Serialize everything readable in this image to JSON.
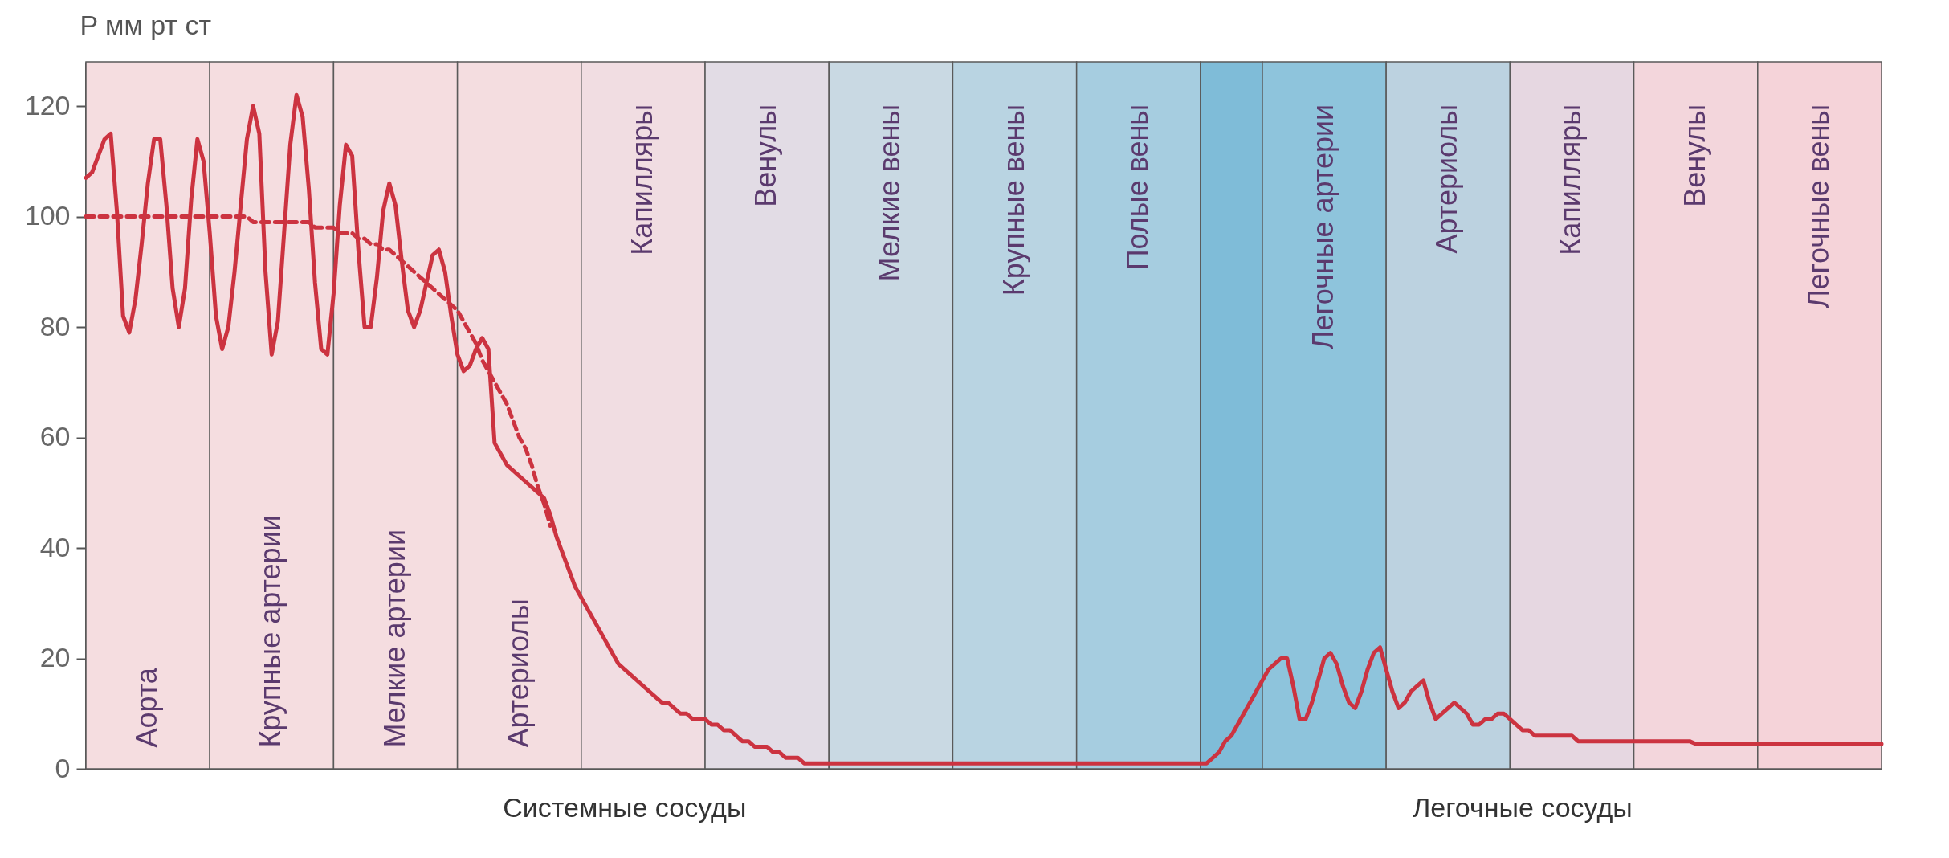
{
  "chart_data": {
    "type": "line",
    "ylabel": "P мм рт ст",
    "ylim": [
      0,
      128
    ],
    "yticks": [
      0,
      20,
      40,
      60,
      80,
      100,
      120
    ],
    "tick_labels": "y",
    "marker": "none",
    "categories": [
      null,
      null,
      null,
      null,
      null,
      null,
      null,
      null,
      null,
      null,
      null,
      null,
      null,
      null,
      null,
      null,
      null,
      null,
      null,
      null,
      null,
      null,
      null,
      null,
      null,
      null,
      null,
      null,
      null,
      null,
      null,
      null,
      null,
      null,
      null,
      null,
      null,
      null,
      null,
      null,
      null,
      null,
      null,
      null,
      null,
      null,
      null,
      null,
      null,
      null,
      null,
      null,
      null,
      null,
      null,
      null,
      null,
      null,
      null,
      null,
      null,
      null,
      null,
      null,
      null,
      null,
      null,
      null,
      null,
      null,
      null,
      null,
      null,
      null,
      null,
      null,
      null,
      null,
      null,
      null,
      null,
      null,
      null,
      null,
      null,
      null,
      null,
      null,
      null,
      null,
      null,
      null,
      null,
      null,
      null,
      null,
      null,
      null,
      null,
      null,
      null,
      null,
      null,
      null,
      null,
      null,
      null,
      null,
      null,
      null,
      null,
      null,
      null,
      null,
      null,
      null,
      null,
      null,
      null,
      null,
      null,
      null,
      null,
      null,
      null,
      null,
      null,
      null,
      null,
      null,
      null,
      null,
      null,
      null,
      null,
      null,
      null,
      null,
      null,
      null,
      null,
      null,
      null,
      null,
      null,
      null,
      null,
      null,
      null,
      null,
      null,
      null,
      null,
      null,
      null,
      null,
      null,
      null,
      null,
      null,
      null,
      null,
      null,
      null,
      null,
      null,
      null,
      null,
      null,
      null,
      null,
      null,
      null,
      null,
      null,
      null,
      null,
      null,
      null,
      null,
      null,
      null,
      null,
      null,
      null,
      null,
      null,
      null,
      null,
      null,
      null,
      null,
      null,
      null,
      null,
      null,
      null,
      null,
      null,
      null,
      null,
      null,
      null,
      null,
      null,
      null,
      null,
      null,
      null,
      null,
      null,
      null,
      null,
      null,
      null,
      null,
      null,
      null,
      null,
      null,
      null,
      null,
      null,
      null,
      null,
      null,
      null,
      null,
      null,
      null,
      null,
      null,
      null,
      null,
      null,
      null,
      null,
      null,
      null,
      null,
      null,
      null,
      null,
      null,
      null,
      null,
      null,
      null,
      null,
      null,
      null,
      null,
      null,
      null,
      null,
      null,
      null,
      null,
      null,
      null,
      null,
      null,
      null,
      null,
      null,
      null,
      null,
      null,
      null,
      null,
      null,
      null,
      null,
      null,
      null,
      null,
      null,
      null,
      null,
      null,
      null,
      null,
      null,
      null,
      null,
      null,
      null,
      null,
      null,
      null,
      null
    ],
    "annotations": [
      "Аорта",
      "Крупные артерии",
      "Мелкие артерии",
      "Артериолы",
      "Капилляры",
      "Венулы",
      "Мелкие вены",
      "Крупные вены",
      "Полые вены",
      "Легочные артерии",
      "Артериолы",
      "Капилляры",
      "Венулы",
      "Легочные вены",
      "Системные сосуды",
      "Легочные сосуды"
    ],
    "series": [
      {
        "color": "#cc3340",
        "line_style": "solid",
        "values": [
          107,
          108,
          111,
          114,
          115,
          101,
          82,
          79,
          85,
          95,
          106,
          114,
          114,
          102,
          87,
          80,
          87,
          103,
          114,
          110,
          97,
          82,
          76,
          80,
          90,
          102,
          114,
          120,
          115,
          90,
          75,
          81,
          97,
          113,
          122,
          118,
          105,
          88,
          76,
          75,
          86,
          102,
          113,
          111,
          94,
          80,
          80,
          89,
          101,
          106,
          102,
          92,
          83,
          80,
          83,
          88,
          93,
          94,
          90,
          82,
          75,
          72,
          73,
          76,
          78,
          76,
          59,
          57,
          55,
          54,
          53,
          52,
          51,
          50,
          49,
          46,
          42,
          39,
          36,
          33,
          31,
          29,
          27,
          25,
          23,
          21,
          19,
          18,
          17,
          16,
          15,
          14,
          13,
          12,
          12,
          11,
          10,
          10,
          9,
          9,
          9,
          8,
          8,
          7,
          7,
          6,
          5,
          5,
          4,
          4,
          4,
          3,
          3,
          2,
          2,
          2,
          1,
          1,
          1,
          1,
          1,
          1,
          1,
          1,
          1,
          1,
          1,
          1,
          1,
          1,
          1,
          1,
          1,
          1,
          1,
          1,
          1,
          1,
          1,
          1,
          1,
          1,
          1,
          1,
          1,
          1,
          1,
          1,
          1,
          1,
          1,
          1,
          1,
          1,
          1,
          1,
          1,
          1,
          1,
          1,
          1,
          1,
          1,
          1,
          1,
          1,
          1,
          1,
          1,
          1,
          1,
          1,
          1,
          1,
          1,
          1,
          1,
          1,
          1,
          1,
          1,
          1,
          2,
          3,
          5,
          6,
          8,
          10,
          12,
          14,
          16,
          18,
          19,
          20,
          20,
          15,
          9,
          9,
          12,
          16,
          20,
          21,
          19,
          15,
          12,
          11,
          14,
          18,
          21,
          22,
          18,
          14,
          11,
          12,
          14,
          15,
          16,
          12,
          9,
          10,
          11,
          12,
          11,
          10,
          8,
          8,
          9,
          9,
          10,
          10,
          9,
          8,
          7,
          7,
          6,
          6,
          6,
          6,
          6,
          6,
          6,
          5,
          5,
          5,
          5,
          5,
          5,
          5,
          5,
          5,
          5,
          5,
          5,
          5,
          5,
          5,
          5,
          5,
          5,
          5,
          4.5,
          4.5,
          4.5,
          4.5,
          4.5,
          4.5,
          4.5,
          4.5,
          4.5,
          4.5,
          4.5,
          4.5,
          4.5,
          4.5,
          4.5,
          4.5,
          4.5,
          4.5,
          4.5,
          4.5,
          4.5,
          4.5,
          4.5,
          4.5,
          4.5,
          4.5,
          4.5,
          4.5,
          4.5,
          4.5,
          4.5
        ]
      },
      {
        "color": "#cc3340",
        "line_style": "dashed",
        "values": [
          100,
          100,
          100,
          100,
          100,
          100,
          100,
          100,
          100,
          100,
          100,
          100,
          100,
          100,
          100,
          100,
          100,
          100,
          100,
          100,
          100,
          100,
          100,
          100,
          100,
          100,
          100,
          99,
          99,
          99,
          99,
          99,
          99,
          99,
          99,
          99,
          99,
          98,
          98,
          98,
          98,
          97,
          97,
          97,
          96,
          96,
          95,
          95,
          94,
          94,
          93,
          92,
          91,
          90,
          89,
          88,
          87,
          86,
          85,
          84,
          83,
          81,
          79,
          77,
          74,
          72,
          70,
          68,
          66,
          63,
          60,
          58,
          55,
          51,
          48,
          44,
          null,
          null,
          null,
          null,
          null,
          null,
          null,
          null,
          null,
          null,
          null,
          null,
          null,
          null,
          null,
          null,
          null,
          null,
          null,
          null,
          null,
          null,
          null,
          null,
          null,
          null,
          null,
          null,
          null,
          null,
          null,
          null,
          null,
          null,
          null,
          null,
          null,
          null,
          null,
          null,
          null,
          null,
          null,
          null,
          null,
          null,
          null,
          null,
          null,
          null,
          null,
          null,
          null,
          null,
          null,
          null,
          null,
          null,
          null,
          null,
          null,
          null,
          null,
          null,
          null,
          null,
          null,
          null,
          null,
          null,
          null,
          null,
          null,
          null,
          null,
          null,
          null,
          null,
          null,
          null,
          null,
          null,
          null,
          null,
          null,
          null,
          null,
          null,
          null,
          null,
          null,
          null,
          null,
          null,
          null,
          null,
          null,
          null,
          null,
          null,
          null,
          null,
          null,
          null,
          null,
          null,
          null,
          null,
          null,
          null,
          null,
          null,
          null,
          null,
          null,
          null,
          null,
          null,
          null,
          null,
          null,
          null,
          null,
          null,
          null,
          null,
          null,
          null,
          null,
          null,
          null,
          null,
          null,
          null,
          null,
          null,
          null,
          null,
          null,
          null,
          null,
          null,
          null,
          null,
          null,
          null,
          null,
          null,
          null,
          null,
          null,
          null,
          null,
          null,
          null,
          null,
          null,
          null,
          null,
          null,
          null,
          null,
          null,
          null,
          null,
          null,
          null,
          null,
          null,
          null,
          null,
          null,
          null,
          null,
          null,
          null,
          null,
          null,
          null,
          null,
          null,
          null,
          null,
          null,
          null,
          null,
          null,
          null,
          null,
          null,
          null,
          null,
          null,
          null,
          null,
          null,
          null,
          null,
          null,
          null,
          null,
          null,
          null,
          null,
          null,
          null,
          null,
          null,
          null,
          null,
          null,
          null,
          null,
          null,
          null
        ]
      }
    ]
  }
}
